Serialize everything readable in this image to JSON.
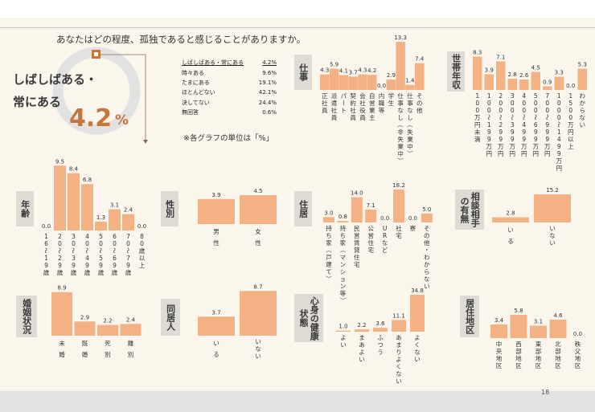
{
  "question": "あなたはどの程度、孤独であると感じることがありますか。",
  "highlight": {
    "label1": "しばしばある・",
    "label2": "常にある",
    "value": "4.2",
    "unit": "%"
  },
  "summary": [
    {
      "label": "しばしばある・常にある",
      "value": "4.2%"
    },
    {
      "label": "時々ある",
      "value": "9.6%"
    },
    {
      "label": "たまにある",
      "value": "19.1%"
    },
    {
      "label": "ほとんどない",
      "value": "42.1%"
    },
    {
      "label": "決してない",
      "value": "24.4%"
    },
    {
      "label": "無回答",
      "value": "0.6%"
    }
  ],
  "note": "※各グラフの単位は「%」",
  "page_number": "18",
  "chart_data": [
    {
      "type": "bar",
      "title": "仕事",
      "categories": [
        "正社員",
        "派遣社員",
        "パート",
        "契約社員",
        "会社役員",
        "自営業主",
        "内職等",
        "学生",
        "仕事なし（非失業中）",
        "仕事なし（失業中）",
        "その他"
      ],
      "values": [
        4.3,
        5.9,
        4.1,
        3.7,
        4.3,
        4.2,
        0.0,
        2.9,
        13.3,
        1.4,
        7.4
      ]
    },
    {
      "type": "bar",
      "title": "世帯年収",
      "categories": [
        "100万円未満",
        "100～199万円",
        "200～299万円",
        "300～399万円",
        "400～499万円",
        "500～699万円",
        "700～999万円",
        "1000～1499万円",
        "1500万円以上",
        "わからない"
      ],
      "values": [
        8.3,
        3.9,
        7.1,
        2.8,
        2.6,
        4.5,
        0.9,
        3.3,
        0.0,
        5.3
      ]
    },
    {
      "type": "bar",
      "title": "年齢",
      "categories": [
        "16～19歳",
        "20～29歳",
        "30～39歳",
        "40～49歳",
        "50～59歳",
        "60～69歳",
        "70～79歳",
        "80歳以上"
      ],
      "values": [
        0.0,
        9.5,
        8.4,
        6.8,
        1.3,
        3.1,
        2.4,
        0.0
      ]
    },
    {
      "type": "bar",
      "title": "性別",
      "categories": [
        "男性",
        "女性"
      ],
      "values": [
        3.9,
        4.5
      ]
    },
    {
      "type": "bar",
      "title": "住居",
      "categories": [
        "持ち家（戸建て）",
        "持ち家（マンション等）",
        "民営賃貸住宅",
        "公営住宅",
        "URなど",
        "社宅",
        "寮",
        "その他・わからない"
      ],
      "values": [
        3.0,
        0.8,
        14.0,
        7.1,
        0.0,
        18.2,
        0.0,
        5.0
      ]
    },
    {
      "type": "bar",
      "title": "相談相手の有無",
      "categories": [
        "いる",
        "いない"
      ],
      "values": [
        2.8,
        15.2
      ]
    },
    {
      "type": "bar",
      "title": "婚姻状況",
      "categories": [
        "未婚",
        "既婚",
        "死別",
        "離別"
      ],
      "values": [
        8.9,
        2.9,
        2.2,
        2.4
      ]
    },
    {
      "type": "bar",
      "title": "同居人",
      "categories": [
        "いる",
        "いない"
      ],
      "values": [
        3.7,
        8.7
      ]
    },
    {
      "type": "bar",
      "title": "心身の健康状態",
      "categories": [
        "よい",
        "まあよい",
        "ふつう",
        "あまりよくない",
        "よくない"
      ],
      "values": [
        1.0,
        2.2,
        3.6,
        11.1,
        34.8
      ]
    },
    {
      "type": "bar",
      "title": "居住地区",
      "categories": [
        "中央地区",
        "西部地区",
        "東部地区",
        "北部地区",
        "秩父地区"
      ],
      "values": [
        3.4,
        5.8,
        3.1,
        4.6,
        0.0
      ]
    }
  ],
  "colors": {
    "bar": "#f4b183",
    "accent": "#c6763a",
    "ring": "#e2e2e2",
    "label_bg": "#dedbd5"
  }
}
